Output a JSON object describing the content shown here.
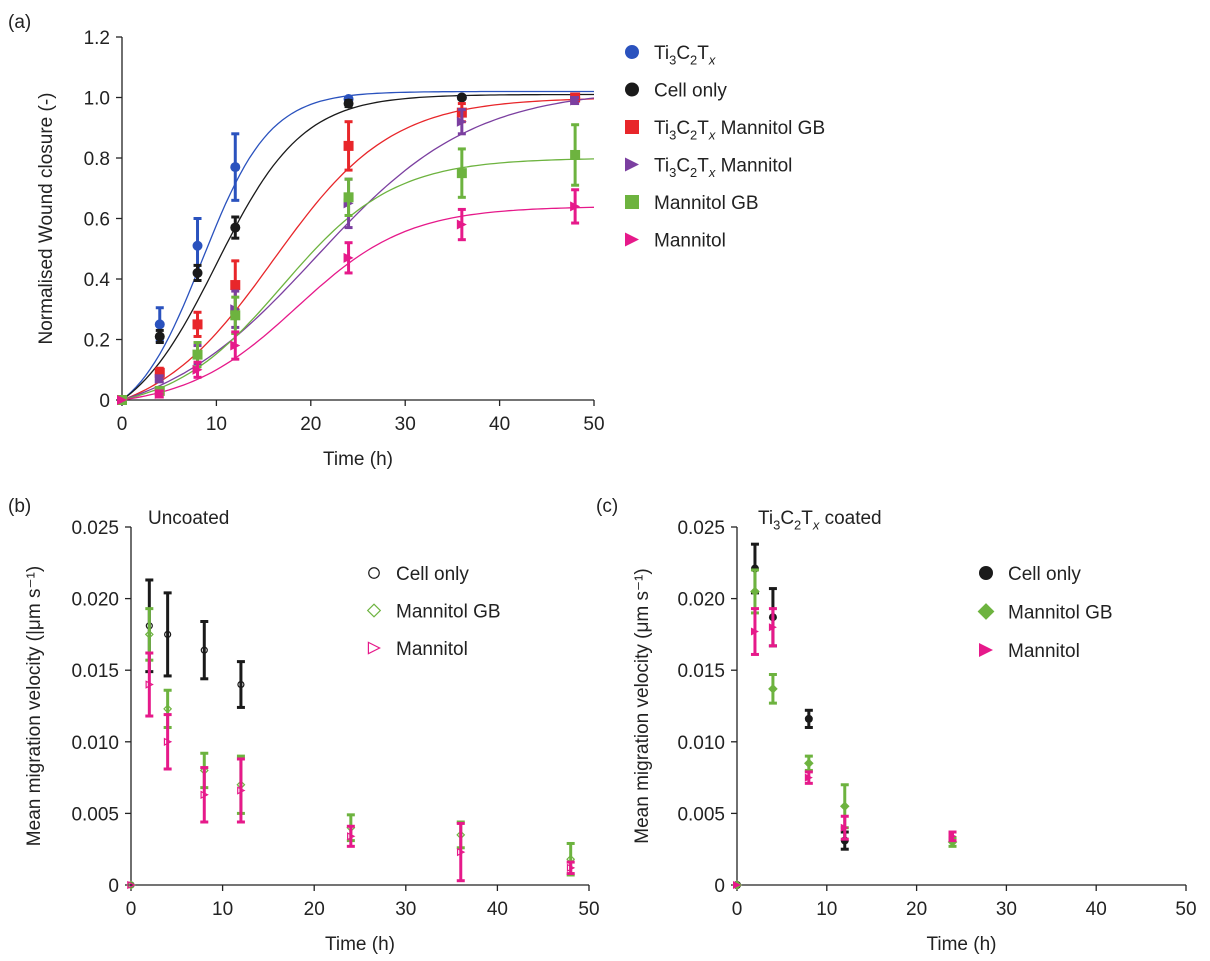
{
  "colors": {
    "ti3c2tx": "#2a52be",
    "cell_only": "#1a1a1a",
    "ti3c2tx_mannitol_gb": "#e8262a",
    "ti3c2tx_mannitol": "#7b3fa0",
    "mannitol_gb": "#6db33f",
    "mannitol": "#e6198a",
    "axis": "#222222"
  },
  "chart_data": [
    {
      "panel": "(a)",
      "type": "scatter",
      "title": "",
      "xlabel": "Time (h)",
      "ylabel": "Normalised Wound closure (-)",
      "xlim": [
        0,
        50
      ],
      "ylim": [
        0,
        1.2
      ],
      "xticks": [
        "0",
        "10",
        "20",
        "30",
        "40",
        "50"
      ],
      "yticks": [
        "0",
        "0.2",
        "0.4",
        "0.6",
        "0.8",
        "1.0",
        "1.2"
      ],
      "legend_position": "right",
      "series": [
        {
          "name": "Ti3C2Tx",
          "name_sub": [
            "Ti",
            "3",
            "C",
            "2",
            "T",
            "x",
            ""
          ],
          "key": "ti3c2tx",
          "marker": "circle",
          "x": [
            0,
            4,
            8,
            12,
            24,
            36,
            48
          ],
          "y": [
            0,
            0.25,
            0.51,
            0.77,
            0.995,
            1.0,
            1.0
          ],
          "err": [
            0,
            0.055,
            0.09,
            0.11,
            0.005,
            0.005,
            0.005
          ],
          "fit": {
            "L": 1.02,
            "k": 0.28,
            "x0": 8.5
          }
        },
        {
          "name": "Cell only",
          "key": "cell_only",
          "marker": "circle",
          "x": [
            0,
            4,
            8,
            12,
            24,
            36,
            48
          ],
          "y": [
            0,
            0.21,
            0.42,
            0.57,
            0.98,
            1.0,
            1.0
          ],
          "err": [
            0,
            0.02,
            0.025,
            0.035,
            0.01,
            0.005,
            0.005
          ],
          "fit": {
            "L": 1.01,
            "k": 0.22,
            "x0": 10.0
          }
        },
        {
          "name": "Ti3C2Tx Mannitol GB",
          "name_sub": [
            "Ti",
            "3",
            "C",
            "2",
            "T",
            "x",
            " Mannitol GB"
          ],
          "key": "ti3c2tx_mannitol_gb",
          "marker": "square",
          "x": [
            0,
            4,
            8,
            12,
            24,
            36,
            48
          ],
          "y": [
            0,
            0.09,
            0.25,
            0.38,
            0.84,
            0.95,
            1.0
          ],
          "err": [
            0,
            0.015,
            0.04,
            0.08,
            0.08,
            0.03,
            0.01
          ],
          "fit": {
            "L": 1.0,
            "k": 0.16,
            "x0": 16.0
          }
        },
        {
          "name": "Ti3C2Tx Mannitol",
          "name_sub": [
            "Ti",
            "3",
            "C",
            "2",
            "T",
            "x",
            " Mannitol"
          ],
          "key": "ti3c2tx_mannitol",
          "marker": "triangle-right",
          "x": [
            0,
            4,
            8,
            12,
            24,
            36,
            48
          ],
          "y": [
            0,
            0.07,
            0.15,
            0.3,
            0.65,
            0.92,
            0.99
          ],
          "err": [
            0,
            0.01,
            0.03,
            0.06,
            0.08,
            0.04,
            0.01
          ],
          "fit": {
            "L": 1.03,
            "k": 0.12,
            "x0": 20.5
          }
        },
        {
          "name": "Mannitol GB",
          "key": "mannitol_gb",
          "marker": "square",
          "x": [
            0,
            4,
            8,
            12,
            24,
            36,
            48
          ],
          "y": [
            0,
            0.03,
            0.15,
            0.28,
            0.67,
            0.75,
            0.81
          ],
          "err": [
            0,
            0.01,
            0.04,
            0.06,
            0.06,
            0.08,
            0.1
          ],
          "fit": {
            "L": 0.8,
            "k": 0.17,
            "x0": 17.0
          }
        },
        {
          "name": "Mannitol",
          "key": "mannitol",
          "marker": "triangle-right",
          "x": [
            0,
            4,
            8,
            12,
            24,
            36,
            48
          ],
          "y": [
            0,
            0.02,
            0.1,
            0.18,
            0.47,
            0.58,
            0.64
          ],
          "err": [
            0,
            0.01,
            0.025,
            0.045,
            0.05,
            0.05,
            0.055
          ],
          "fit": {
            "L": 0.64,
            "k": 0.17,
            "x0": 18.5
          }
        }
      ]
    },
    {
      "panel": "(b)",
      "type": "scatter",
      "title": "Uncoated",
      "xlabel": "Time (h)",
      "ylabel": "Mean migration velocity (|μm s⁻¹)",
      "xlim": [
        0,
        50
      ],
      "ylim": [
        0,
        0.025
      ],
      "xticks": [
        "0",
        "10",
        "20",
        "30",
        "40",
        "50"
      ],
      "yticks": [
        "0",
        "0.005",
        "0.010",
        "0.015",
        "0.020",
        "0.025"
      ],
      "legend_position": "top-right",
      "series": [
        {
          "name": "Cell only",
          "key": "cell_only",
          "marker": "circle-open",
          "x": [
            0,
            2,
            4,
            8,
            12
          ],
          "y": [
            0,
            0.0181,
            0.0175,
            0.0164,
            0.014
          ],
          "err": [
            0,
            0.0032,
            0.0029,
            0.002,
            0.0016
          ]
        },
        {
          "name": "Mannitol GB",
          "key": "mannitol_gb",
          "marker": "diamond-open",
          "x": [
            0,
            2,
            4,
            8,
            12,
            24,
            36,
            48
          ],
          "y": [
            0,
            0.0175,
            0.0123,
            0.008,
            0.007,
            0.004,
            0.0035,
            0.0018
          ],
          "err": [
            0,
            0.0018,
            0.0013,
            0.0012,
            0.002,
            0.0009,
            0.0009,
            0.0011
          ]
        },
        {
          "name": "Mannitol",
          "key": "mannitol",
          "marker": "triangle-right-open",
          "x": [
            0,
            2,
            4,
            8,
            12,
            24,
            36,
            48
          ],
          "y": [
            0,
            0.014,
            0.01,
            0.0063,
            0.0066,
            0.0034,
            0.0023,
            0.0012
          ],
          "err": [
            0,
            0.0022,
            0.0019,
            0.0019,
            0.0022,
            0.0007,
            0.002,
            0.0004
          ]
        }
      ]
    },
    {
      "panel": "(c)",
      "type": "scatter",
      "title": "Ti3C2Tx coated",
      "title_sub": [
        "Ti",
        "3",
        "C",
        "2",
        "T",
        "x",
        " coated"
      ],
      "xlabel": "Time (h)",
      "ylabel": "Mean migration velocity (μm s⁻¹)",
      "xlim": [
        0,
        50
      ],
      "ylim": [
        0,
        0.025
      ],
      "xticks": [
        "0",
        "10",
        "20",
        "30",
        "40",
        "50"
      ],
      "yticks": [
        "0",
        "0.005",
        "0.010",
        "0.015",
        "0.020",
        "0.025"
      ],
      "legend_position": "top-right",
      "series": [
        {
          "name": "Cell only",
          "key": "cell_only",
          "marker": "circle",
          "x": [
            0,
            2,
            4,
            8,
            12
          ],
          "y": [
            0,
            0.0221,
            0.0187,
            0.0116,
            0.0031
          ],
          "err": [
            0,
            0.0017,
            0.002,
            0.0006,
            0.0006
          ]
        },
        {
          "name": "Mannitol GB",
          "key": "mannitol_gb",
          "marker": "diamond",
          "x": [
            0,
            2,
            4,
            8,
            12,
            24
          ],
          "y": [
            0,
            0.0205,
            0.0137,
            0.0085,
            0.0055,
            0.003
          ],
          "err": [
            0,
            0.0015,
            0.001,
            0.0005,
            0.0015,
            0.0003
          ]
        },
        {
          "name": "Mannitol",
          "key": "mannitol",
          "marker": "triangle-right",
          "x": [
            0,
            2,
            4,
            8,
            12,
            24
          ],
          "y": [
            0,
            0.0177,
            0.018,
            0.0075,
            0.004,
            0.0034
          ],
          "err": [
            0,
            0.0016,
            0.0013,
            0.0004,
            0.0008,
            0.0003
          ]
        }
      ]
    }
  ]
}
